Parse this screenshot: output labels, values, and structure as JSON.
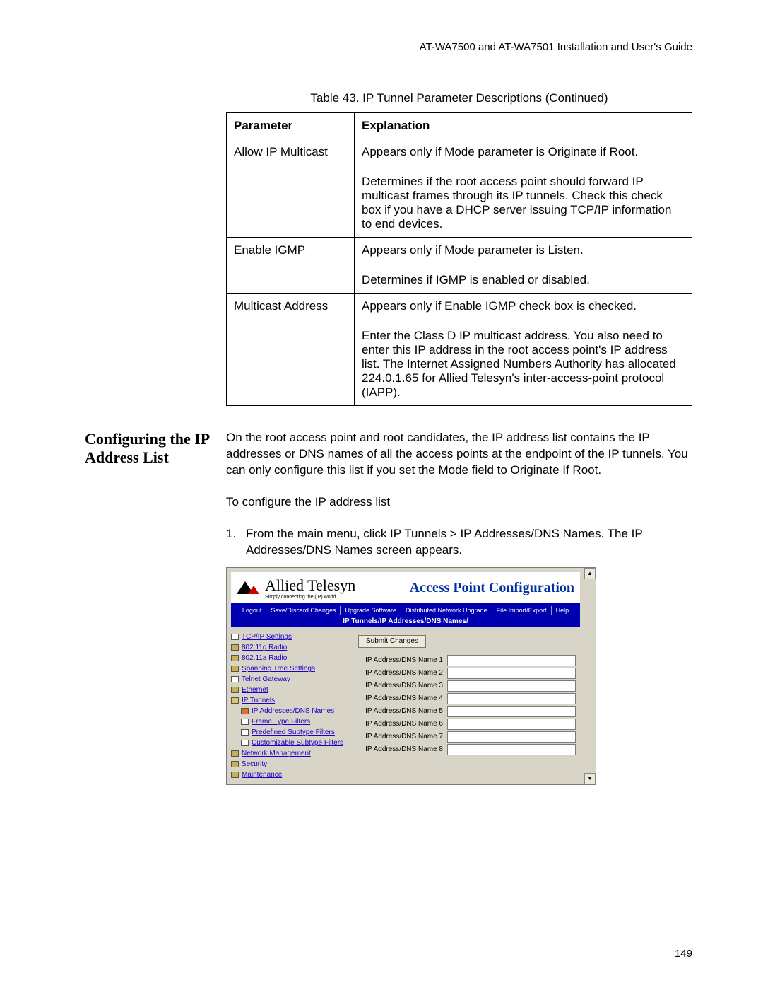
{
  "header": {
    "doc_title": "AT-WA7500 and AT-WA7501 Installation and User's Guide"
  },
  "table": {
    "caption": "Table 43. IP Tunnel Parameter Descriptions (Continued)",
    "head": {
      "param": "Parameter",
      "explain": "Explanation"
    },
    "rows": [
      {
        "param": "Allow IP Multicast",
        "p1": "Appears only if Mode parameter is Originate if Root.",
        "p2": "Determines if the root access point should forward IP multicast frames through its IP tunnels. Check this check box if you have a DHCP server issuing TCP/IP information to end devices."
      },
      {
        "param": "Enable IGMP",
        "p1": "Appears only if Mode parameter is Listen.",
        "p2": "Determines if IGMP is enabled or disabled."
      },
      {
        "param": "Multicast Address",
        "p1": "Appears only if Enable IGMP check box is checked.",
        "p2": "Enter the Class D IP multicast address. You also need to enter this IP address in the root access point's IP address list. The Internet Assigned Numbers Authority has allocated 224.0.1.65 for Allied Telesyn's inter-access-point protocol (IAPP)."
      }
    ]
  },
  "section": {
    "heading": "Configuring the IP Address List",
    "intro": "On the root access point and root candidates, the IP address list contains the IP addresses or DNS names of all the access points at the endpoint of the IP tunnels. You can only configure this list if you set the Mode field to Originate If Root.",
    "lead": "To configure the IP address list",
    "step_num": "1.",
    "step1": "From the main menu, click IP Tunnels > IP Addresses/DNS Names. The IP Addresses/DNS Names screen appears."
  },
  "shot": {
    "brand": "Allied Telesyn",
    "tagline": "Simply connecting the (IP) world",
    "title": "Access Point Configuration",
    "nav": [
      "Logout",
      "Save/Discard Changes",
      "Upgrade Software",
      "Distributed Network Upgrade",
      "File Import/Export",
      "Help"
    ],
    "crumb": "IP Tunnels/IP Addresses/DNS Names/",
    "tree": [
      {
        "icon": "doc",
        "label": "TCP/IP Settings",
        "indent": 0
      },
      {
        "icon": "folder-closed",
        "label": "802.11g Radio",
        "indent": 0
      },
      {
        "icon": "folder-closed",
        "label": "802.11a Radio",
        "indent": 0
      },
      {
        "icon": "folder-closed",
        "label": "Spanning Tree Settings",
        "indent": 0
      },
      {
        "icon": "doc",
        "label": "Telnet Gateway",
        "indent": 0
      },
      {
        "icon": "folder-closed",
        "label": "Ethernet",
        "indent": 0
      },
      {
        "icon": "folder-open",
        "label": "IP Tunnels",
        "indent": 0
      },
      {
        "icon": "doc orange",
        "label": "IP Addresses/DNS Names",
        "indent": 1
      },
      {
        "icon": "doc",
        "label": "Frame Type Filters",
        "indent": 1
      },
      {
        "icon": "doc",
        "label": "Predefined Subtype Filters",
        "indent": 1
      },
      {
        "icon": "doc",
        "label": "Customizable Subtype Filters",
        "indent": 1
      },
      {
        "icon": "folder-closed",
        "label": "Network Management",
        "indent": 0
      },
      {
        "icon": "folder-closed",
        "label": "Security",
        "indent": 0
      },
      {
        "icon": "folder-closed",
        "label": "Maintenance",
        "indent": 0
      }
    ],
    "submit": "Submit Changes",
    "fields": [
      "IP Address/DNS Name 1",
      "IP Address/DNS Name 2",
      "IP Address/DNS Name 3",
      "IP Address/DNS Name 4",
      "IP Address/DNS Name 5",
      "IP Address/DNS Name 6",
      "IP Address/DNS Name 7",
      "IP Address/DNS Name 8"
    ]
  },
  "page_number": "149"
}
